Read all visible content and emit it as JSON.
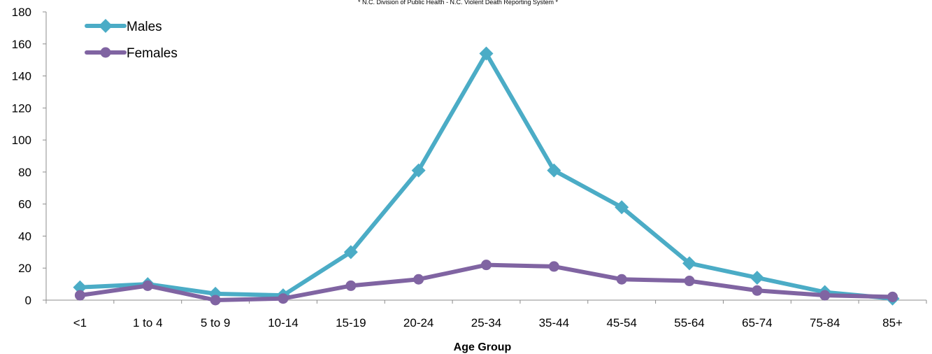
{
  "chart_data": {
    "type": "line",
    "source_note": "* N.C. Division of Public Health - N.C. Violent Death Reporting System *",
    "xlabel": "Age Group",
    "ylabel": "",
    "categories": [
      "<1",
      "1 to 4",
      "5 to 9",
      "10-14",
      "15-19",
      "20-24",
      "25-34",
      "35-44",
      "45-54",
      "55-64",
      "65-74",
      "75-84",
      "85+"
    ],
    "ylim": [
      0,
      180
    ],
    "yticks": [
      0,
      20,
      40,
      60,
      80,
      100,
      120,
      140,
      160,
      180
    ],
    "grid": false,
    "legend_position": "top-left",
    "series": [
      {
        "name": "Males",
        "marker": "diamond",
        "color": "#4BACC6",
        "values": [
          8,
          10,
          4,
          3,
          30,
          81,
          154,
          81,
          58,
          23,
          14,
          5,
          1
        ]
      },
      {
        "name": "Females",
        "marker": "circle",
        "color": "#8064A2",
        "values": [
          3,
          9,
          0,
          1,
          9,
          13,
          22,
          21,
          13,
          12,
          6,
          3,
          2
        ]
      }
    ]
  }
}
